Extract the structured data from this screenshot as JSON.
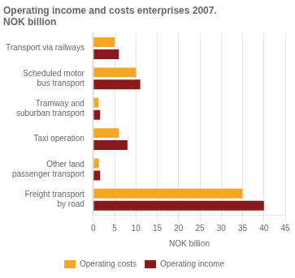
{
  "chart_data": {
    "type": "bar",
    "orientation": "horizontal",
    "title": "Operating income and costs enterprises 2007.\nNOK billion",
    "categories": [
      "Freight transport\nby road",
      "Other land\npassenger transport",
      "Taxi operation",
      "Tramway and\nsuburban transport",
      "Scheduled motor\nbus transport",
      "Transport via railways"
    ],
    "series": [
      {
        "name": "Operating costs",
        "color": "#F5A623",
        "values": [
          35.0,
          1.3,
          6.0,
          1.2,
          10.0,
          5.0
        ]
      },
      {
        "name": "Operating income",
        "color": "#8B1A1A",
        "values": [
          40.0,
          1.6,
          8.0,
          1.6,
          11.0,
          6.0
        ]
      }
    ],
    "xlabel": "NOK billion",
    "xlim": [
      0,
      45
    ],
    "xticks": [
      0,
      5,
      10,
      15,
      20,
      25,
      30,
      35,
      40,
      45
    ],
    "grid": true,
    "legend": "bottom"
  }
}
